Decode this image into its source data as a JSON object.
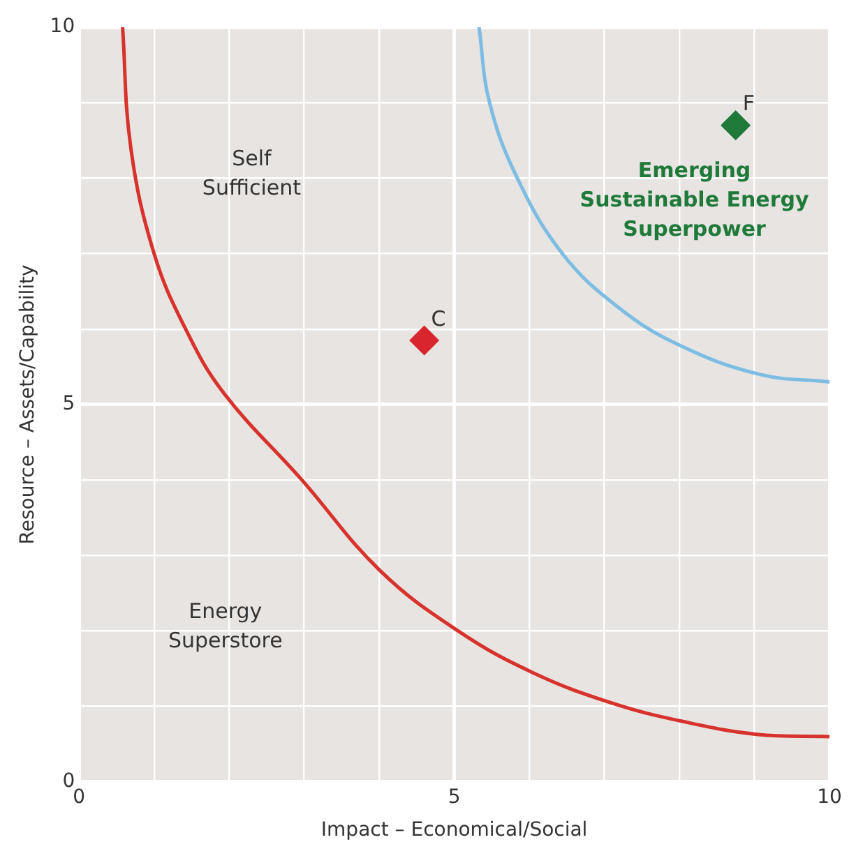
{
  "chart_data": {
    "type": "scatter",
    "xlabel": "Impact – Economical/Social",
    "ylabel": "Resource – Assets/Capability",
    "xlim": [
      0,
      10
    ],
    "ylim": [
      0,
      10
    ],
    "xticks": [
      0,
      {
        "value": 1,
        "label": null
      },
      {
        "value": 2,
        "label": null
      },
      {
        "value": 3,
        "label": null
      },
      {
        "value": 4,
        "label": null
      },
      5,
      {
        "value": 6,
        "label": null
      },
      {
        "value": 7,
        "label": null
      },
      {
        "value": 8,
        "label": null
      },
      {
        "value": 9,
        "label": null
      },
      10
    ],
    "yticks": [
      0,
      {
        "value": 1,
        "label": null
      },
      {
        "value": 2,
        "label": null
      },
      {
        "value": 3,
        "label": null
      },
      {
        "value": 4,
        "label": null
      },
      5,
      {
        "value": 6,
        "label": null
      },
      {
        "value": 7,
        "label": null
      },
      {
        "value": 8,
        "label": null
      },
      {
        "value": 9,
        "label": null
      },
      10
    ],
    "grid": true,
    "legend": false,
    "marker": "diamond",
    "series": [
      {
        "type": "line",
        "marker": "none",
        "color": "#d8322c",
        "x": [
          0.58,
          0.69,
          1.0,
          1.42,
          1.93,
          2.97,
          4.01,
          5.05,
          6.04,
          7.08,
          8.05,
          9.03,
          10
        ],
        "values": [
          10,
          8.4,
          7.0,
          6.0,
          5.15,
          4.0,
          2.8,
          2.0,
          1.45,
          1.05,
          0.8,
          0.63,
          0.6
        ]
      },
      {
        "type": "line",
        "marker": "none",
        "color": "#7dbde3",
        "x": [
          5.33,
          5.47,
          5.84,
          6.44,
          7.17,
          7.97,
          9.07,
          10
        ],
        "values": [
          10,
          9.0,
          8.0,
          7.0,
          6.3,
          5.8,
          5.4,
          5.3
        ]
      },
      {
        "name": "C",
        "color": "#d9262e",
        "x": [
          4.6
        ],
        "values": [
          5.85
        ]
      },
      {
        "name": "F",
        "color": "#1f7a3a",
        "x": [
          8.75
        ],
        "values": [
          8.7
        ]
      }
    ],
    "annotations": [
      "Self Sufficient",
      "Energy Superstore",
      "Emerging Sustainable Energy Superpower"
    ]
  }
}
